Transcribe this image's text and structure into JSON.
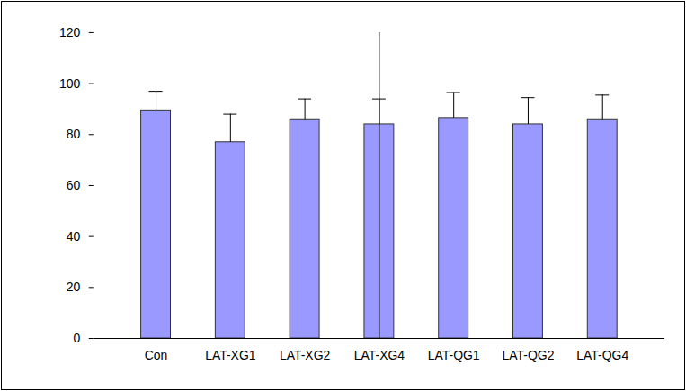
{
  "chart_data": {
    "type": "bar",
    "categories": [
      "Con",
      "LAT-XG1",
      "LAT-XG2",
      "LAT-XG4",
      "LAT-QG1",
      "LAT-QG2",
      "LAT-QG4"
    ],
    "values": [
      89.5,
      77,
      86,
      84,
      86.5,
      84,
      86
    ],
    "errors": [
      7.5,
      11,
      8,
      10,
      10,
      10.5,
      9.5
    ],
    "color": "#9999ff",
    "ylim": [
      0,
      120
    ],
    "yticks": [
      0,
      20,
      40,
      60,
      80,
      100,
      120
    ],
    "grid": false
  }
}
